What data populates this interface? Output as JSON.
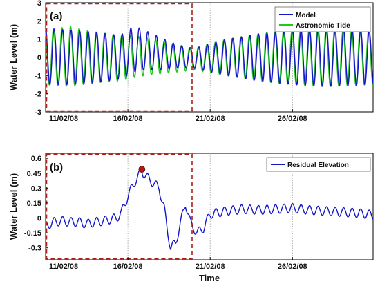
{
  "chart_data": [
    {
      "type": "line",
      "panel_label": "(a)",
      "xlabel": "",
      "ylabel": "Water Level (m)",
      "ylim": [
        -3,
        3
      ],
      "yticks": [
        -3,
        -2,
        -1,
        0,
        1,
        2,
        3
      ],
      "xticks": [
        {
          "day": 11,
          "label": "11/02/08"
        },
        {
          "day": 16,
          "label": "16/02/08"
        },
        {
          "day": 21,
          "label": "21/02/08"
        },
        {
          "day": 26,
          "label": "26/02/08"
        }
      ],
      "xrange_days": [
        11,
        30.9
      ],
      "grid": "vertical dotted",
      "legend_position": "top-right",
      "highlight_box_days": [
        11,
        19.9
      ],
      "series": [
        {
          "name": "Model",
          "color": "#1414c8",
          "sampled": {
            "x_days": [
              11.0,
              12.5,
              14.0,
              15.5,
              16.4,
              17.0,
              18.0,
              19.0,
              20.0,
              22.0,
              24.0,
              26.0,
              28.0,
              30.9
            ],
            "high_water_m": [
              1.6,
              1.5,
              1.4,
              1.2,
              1.75,
              1.5,
              1.1,
              0.7,
              0.5,
              1.0,
              1.3,
              1.5,
              1.55,
              1.5
            ],
            "low_water_m": [
              -1.5,
              -1.5,
              -1.4,
              -1.2,
              -0.8,
              -0.7,
              -0.7,
              -0.6,
              -0.6,
              -1.0,
              -1.3,
              -1.5,
              -1.6,
              -1.5
            ]
          }
        },
        {
          "name": "Astronomic Tide",
          "color": "#22c81e",
          "sampled": {
            "x_days": [
              11.0,
              12.5,
              14.0,
              15.5,
              16.4,
              17.0,
              18.0,
              19.0,
              20.0,
              22.0,
              24.0,
              26.0,
              28.0,
              30.9
            ],
            "high_water_m": [
              1.5,
              1.7,
              1.4,
              1.2,
              1.2,
              1.1,
              0.9,
              0.7,
              0.5,
              1.0,
              1.3,
              1.5,
              1.55,
              1.5
            ],
            "low_water_m": [
              -1.5,
              -1.6,
              -1.4,
              -1.3,
              -1.1,
              -1.0,
              -0.9,
              -0.8,
              -0.7,
              -1.0,
              -1.3,
              -1.5,
              -1.6,
              -1.5
            ]
          }
        }
      ]
    },
    {
      "type": "line",
      "panel_label": "(b)",
      "xlabel": "Time",
      "ylabel": "Water Level (m)",
      "ylim": [
        -0.42,
        0.65
      ],
      "yticks": [
        -0.3,
        -0.15,
        0,
        0.15,
        0.3,
        0.45,
        0.6
      ],
      "ytick_labels": [
        "-0.3",
        "-0.15",
        "0",
        "0.15",
        "0.3",
        "0.45",
        "0.6"
      ],
      "xticks": [
        {
          "day": 11,
          "label": "11/02/08"
        },
        {
          "day": 16,
          "label": "16/02/08"
        },
        {
          "day": 21,
          "label": "21/02/08"
        },
        {
          "day": 26,
          "label": "26/02/08"
        }
      ],
      "xrange_days": [
        11,
        30.9
      ],
      "grid": "vertical dotted",
      "legend_position": "top-right",
      "highlight_box_days": [
        11,
        19.9
      ],
      "peak_marker": {
        "day": 16.85,
        "value": 0.49,
        "color": "#b01818"
      },
      "series": [
        {
          "name": "Residual Elevation",
          "color": "#1414c8",
          "x_days": [
            11.0,
            11.5,
            12.0,
            12.5,
            13.0,
            13.5,
            14.0,
            14.5,
            15.0,
            15.3,
            15.6,
            16.0,
            16.4,
            16.85,
            17.2,
            17.5,
            17.9,
            18.2,
            18.4,
            18.6,
            18.9,
            19.2,
            19.5,
            19.8,
            20.2,
            20.6,
            21.0,
            22.0,
            23.0,
            24.0,
            25.0,
            26.0,
            27.0,
            28.0,
            29.0,
            30.0,
            30.9
          ],
          "values": [
            -0.08,
            -0.04,
            -0.03,
            -0.04,
            -0.04,
            -0.06,
            -0.04,
            -0.03,
            -0.01,
            0.0,
            0.05,
            0.22,
            0.36,
            0.47,
            0.4,
            0.36,
            0.3,
            0.1,
            -0.12,
            -0.3,
            -0.25,
            -0.05,
            0.15,
            -0.05,
            -0.15,
            -0.1,
            0.04,
            0.07,
            0.09,
            0.08,
            0.09,
            0.1,
            0.08,
            0.07,
            0.06,
            0.05,
            0.03
          ]
        }
      ]
    }
  ]
}
